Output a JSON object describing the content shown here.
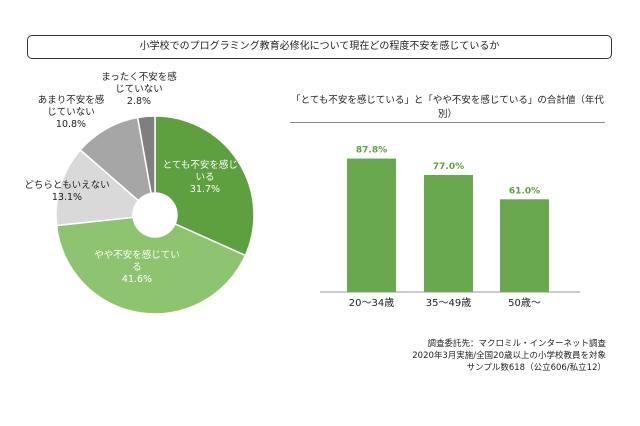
{
  "title": "小学校でのプログラミング教育必修化について現在どの程度不安を感じているか",
  "chart_data": [
    {
      "type": "pie",
      "donut": true,
      "slices": [
        {
          "label": "とても不安を感じている",
          "value": 31.7,
          "display": "31.7%",
          "color": "#5e9f40"
        },
        {
          "label": "やや不安を感じている",
          "value": 41.6,
          "display": "41.6%",
          "color": "#8ec46f"
        },
        {
          "label": "どちらともいえない",
          "value": 13.1,
          "display": "13.1%",
          "color": "#d9d9d9"
        },
        {
          "label": "あまり不安を感じていない",
          "value": 10.8,
          "display": "10.8%",
          "color": "#a6a6a6"
        },
        {
          "label": "まったく不安を感じていない",
          "value": 2.8,
          "display": "2.8%",
          "color": "#7f7f7f"
        }
      ]
    },
    {
      "type": "bar",
      "title": "「とても不安を感じている」と「やや不安を感じている」の合計値（年代別）",
      "categories": [
        "20～34歳",
        "35～49歳",
        "50歳～"
      ],
      "values": [
        87.8,
        77.0,
        61.0
      ],
      "data_labels": [
        "87.8%",
        "77.0%",
        "61.0%"
      ],
      "color": "#6aa84f",
      "label_color": "#5e9f40",
      "ylim": [
        0,
        100
      ]
    }
  ],
  "note": [
    "調査委託先：マクロミル・インターネット調査",
    "2020年3月実施/全国20歳以上の小学校教員を対象",
    "サンプル数618（公立606/私立12）"
  ]
}
